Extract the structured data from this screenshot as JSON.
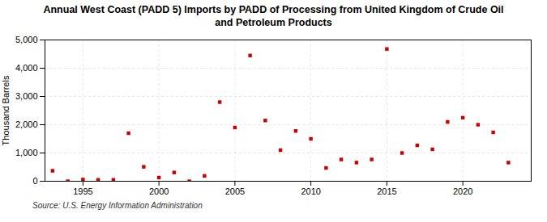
{
  "chart_data": {
    "type": "scatter",
    "title": "Annual West Coast (PADD 5) Imports by PADD of Processing from United Kingdom of Crude Oil\nand Petroleum Products",
    "ylabel": "Thousand Barrels",
    "source": "Source: U.S. Energy Information Administration",
    "x": [
      1993,
      1994,
      1995,
      1996,
      1997,
      1998,
      1999,
      2000,
      2001,
      2002,
      2003,
      2004,
      2005,
      2006,
      2007,
      2008,
      2009,
      2010,
      2011,
      2012,
      2013,
      2014,
      2015,
      2016,
      2017,
      2018,
      2019,
      2020,
      2021,
      2022,
      2023
    ],
    "values": [
      370,
      0,
      60,
      50,
      50,
      1700,
      510,
      130,
      310,
      0,
      190,
      2800,
      1900,
      4450,
      2150,
      1100,
      1780,
      1500,
      470,
      770,
      660,
      770,
      4680,
      1000,
      1270,
      1130,
      2100,
      2250,
      2000,
      1730,
      660
    ],
    "color": "#cc0000",
    "marker": "square",
    "xlim": [
      1992.5,
      2024.5
    ],
    "ylim": [
      0,
      5000
    ],
    "xticks": [
      1995,
      2000,
      2005,
      2010,
      2015,
      2020
    ],
    "yticks": [
      0,
      {
        "value": 1000,
        "label": "1,000"
      },
      {
        "value": 2000,
        "label": "2,000"
      },
      {
        "value": 3000,
        "label": "3,000"
      },
      {
        "value": 4000,
        "label": "4,000"
      },
      {
        "value": 5000,
        "label": "5,000"
      }
    ],
    "grid": true
  }
}
